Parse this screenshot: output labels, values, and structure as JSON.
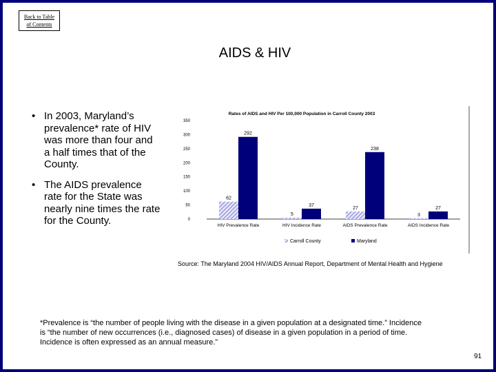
{
  "nav": {
    "back_line1": "Back to Table",
    "back_line2": "of Contents"
  },
  "slide": {
    "title": "AIDS & HIV",
    "bullets": [
      "In 2003, Maryland’s prevalence* rate of HIV was more than four and a half times that of the County.",
      "The AIDS prevalence rate for the State was nearly nine times the rate for the County."
    ],
    "source": "Source: The Maryland 2004 HIV/AIDS Annual Report, Department of Mental Health and Hygiene",
    "footnote": "*Prevalence is “the number of people living with the disease in a given population at a designated time.” Incidence is “the number of new occurrences (i.e., diagnosed cases) of disease in a given population in a period of time. Incidence is often expressed as an annual measure.”",
    "page_number": "91"
  },
  "chart_data": {
    "type": "bar",
    "title": "Rates of AIDS and HIV Per 100,000 Population in Carroll County 2003",
    "categories": [
      "HIV Prevalence Rate",
      "HIV Incidence Rate",
      "AIDS Prevalence Rate",
      "AIDS Incidence Rate"
    ],
    "series": [
      {
        "name": "Carroll County",
        "values": [
          62,
          5,
          27,
          3
        ],
        "color": "#c8c8f0"
      },
      {
        "name": "Maryland",
        "values": [
          292,
          37,
          238,
          27
        ],
        "color": "#00007a"
      }
    ],
    "yticks": [
      0,
      50,
      100,
      150,
      200,
      250,
      300,
      350
    ],
    "ylim": [
      0,
      350
    ],
    "xlabel": "",
    "ylabel": "",
    "legend": "bottom"
  }
}
